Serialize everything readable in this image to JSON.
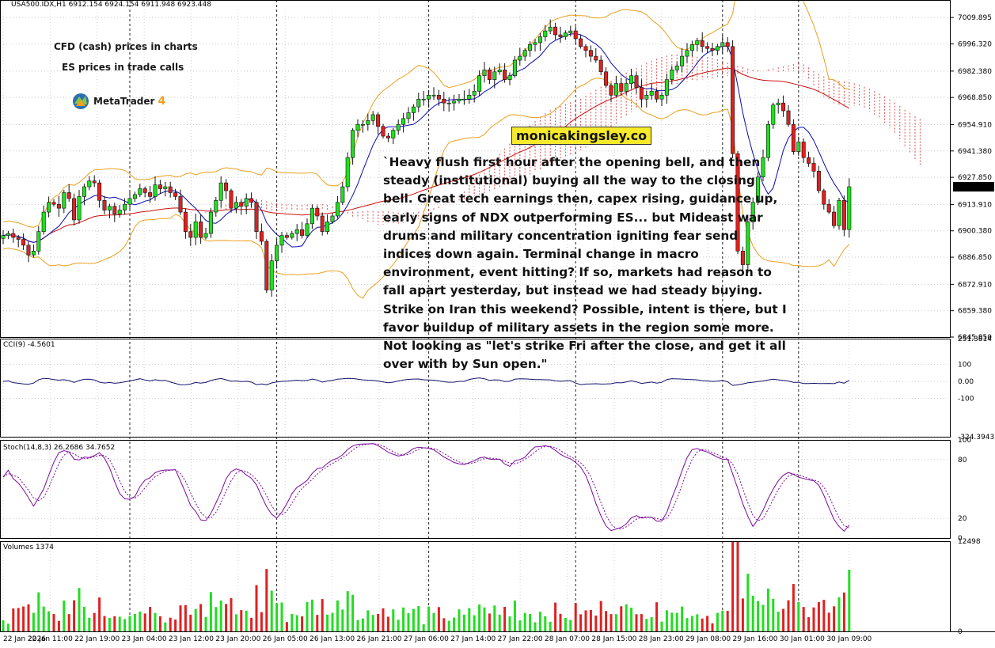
{
  "header": {
    "symbol_line": "USA500.IDX,H1  6912.154 6924.154 6911.948 6923.448"
  },
  "notes": {
    "cfd": "CFD (cash) prices in charts",
    "es": "ES prices in trade calls",
    "platform": "MetaTrader",
    "platform_version": "4"
  },
  "brand_label": "monicakingsley.co",
  "commentary": "`Heavy flush first hour after the opening bell, and then steady (institutional) buying all the way to the closing bell. Great tech earnings then, capex rising, guidance up, early signs of NDX outperforming ES... but Mideast war drums and military concentration igniting fear send indices down again. Terminal change in macro environment, event hitting? If so, markets had reason to fall apart yesterday, but instead we had steady buying. Strike on Iran this weekend? Possible, intent is there, but I favor buildup of military assets in the region some more. Not looking as \"let's strike Fri after the close, and get it all over with by Sun open.\"",
  "chart_data": {
    "type": "candlestick",
    "instrument": "USA500.IDX",
    "timeframe": "H1",
    "last_price": "6923.448",
    "x_labels": [
      "22 Jan 2026",
      "22 Jan 11:00",
      "22 Jan 19:00",
      "23 Jan 04:00",
      "23 Jan 12:00",
      "23 Jan 20:00",
      "26 Jan 05:00",
      "26 Jan 13:00",
      "26 Jan 21:00",
      "27 Jan 06:00",
      "27 Jan 14:00",
      "27 Jan 22:00",
      "28 Jan 07:00",
      "28 Jan 15:00",
      "28 Jan 23:00",
      "29 Jan 08:00",
      "29 Jan 16:00",
      "30 Jan 01:00",
      "30 Jan 09:00"
    ],
    "price_panel": {
      "ylim": [
        6845.85,
        7014.0
      ],
      "y_ticks": [
        "7009.895",
        "6996.320",
        "6982.380",
        "6968.850",
        "6954.910",
        "6941.380",
        "6927.850",
        "6913.910",
        "6900.380",
        "6886.850",
        "6872.910",
        "6859.380",
        "6845.850"
      ],
      "closes": [
        6898,
        6899,
        6897,
        6896,
        6893,
        6888,
        6890,
        6900,
        6910,
        6915,
        6914,
        6912,
        6920,
        6917,
        6906,
        6918,
        6923,
        6926,
        6925,
        6916,
        6911,
        6913,
        6909,
        6911,
        6914,
        6917,
        6919,
        6922,
        6920,
        6918,
        6924,
        6922,
        6923,
        6920,
        6918,
        6910,
        6900,
        6897,
        6905,
        6897,
        6899,
        6910,
        6916,
        6925,
        6921,
        6912,
        6915,
        6913,
        6917,
        6915,
        6900,
        6895,
        6870,
        6885,
        6893,
        6898,
        6897,
        6899,
        6901,
        6898,
        6904,
        6912,
        6908,
        6900,
        6905,
        6908,
        6915,
        6923,
        6938,
        6952,
        6955,
        6955,
        6957,
        6960,
        6954,
        6949,
        6948,
        6952,
        6955,
        6958,
        6961,
        6964,
        6968,
        6968,
        6970,
        6970,
        6968,
        6966,
        6966,
        6967,
        6968,
        6968,
        6970,
        6972,
        6980,
        6983,
        6978,
        6982,
        6983,
        6978,
        6980,
        6988,
        6990,
        6993,
        6996,
        6997,
        7000,
        7003,
        7005,
        7001,
        7000,
        7002,
        7003,
        6999,
        6995,
        6993,
        6990,
        6988,
        6982,
        6975,
        6970,
        6976,
        6972,
        6976,
        6980,
        6974,
        6968,
        6970,
        6972,
        6968,
        6970,
        6978,
        6983,
        6985,
        6990,
        6993,
        6996,
        6998,
        6995,
        6994,
        6993,
        6995,
        6997,
        6995,
        6940,
        6890,
        6883,
        6905,
        6915,
        6928,
        6938,
        6955,
        6965,
        6966,
        6962,
        6955,
        6941,
        6946,
        6938,
        6935,
        6931,
        6921,
        6914,
        6910,
        6903,
        6916,
        6901,
        6923
      ]
    },
    "cci_panel": {
      "title": "CCI(9) -4.5601",
      "ylim": [
        -324.3943,
        251.3814
      ],
      "y_ticks": [
        "251.3814",
        "100",
        "0.00",
        "-100",
        "-324.3943"
      ]
    },
    "stoch_panel": {
      "title": "Stoch(14,8,3) 26.2686 34.7652",
      "ylim": [
        0,
        100
      ],
      "y_ticks": [
        "100",
        "80",
        "20",
        "0"
      ]
    },
    "volume_panel": {
      "title": "Volumes 1374",
      "ylim": [
        0,
        12498
      ],
      "y_ticks": [
        "12498",
        "0"
      ]
    },
    "colors": {
      "bull": "#22dd22",
      "bear": "#e02020",
      "bollinger": "#e8a020",
      "sma_fast": "#0b0bb0",
      "sma_slow": "#cc1010",
      "cloud": "#dd2222",
      "cci_line": "#14146e",
      "stoch_line": "#7a0a9a"
    }
  }
}
